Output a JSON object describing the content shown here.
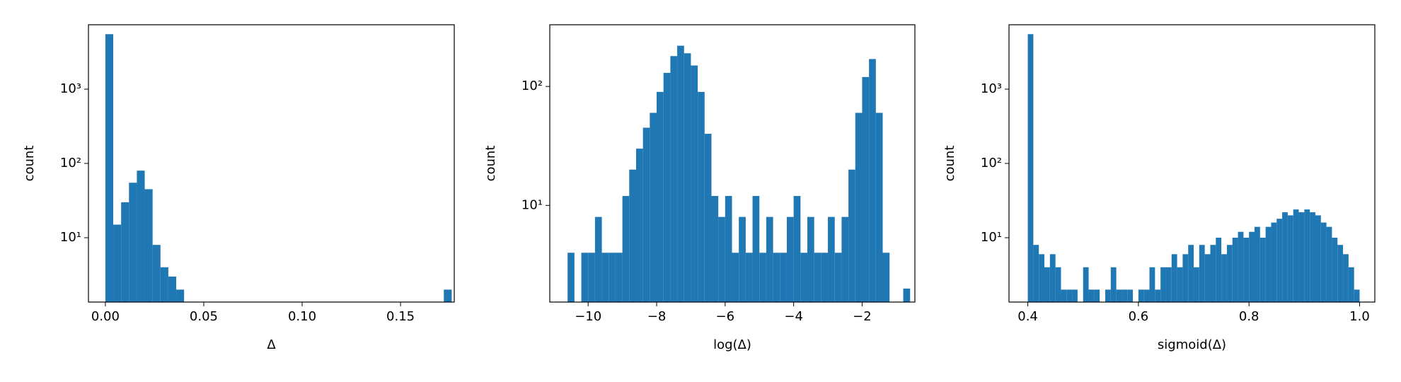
{
  "chart_data": [
    {
      "type": "histogram",
      "xlabel": "Δ",
      "ylabel": "count",
      "color": "#1f77b4",
      "log_y": true,
      "bins": [
        0,
        0.004,
        0.008,
        0.012,
        0.016,
        0.02,
        0.024,
        0.028,
        0.032,
        0.036,
        0.04,
        0.044,
        0.048,
        0.052,
        0.056,
        0.06,
        0.064,
        0.068,
        0.072,
        0.076,
        0.08,
        0.084,
        0.088,
        0.092,
        0.096,
        0.1,
        0.104,
        0.108,
        0.112,
        0.116,
        0.12,
        0.124,
        0.128,
        0.132,
        0.136,
        0.14,
        0.144,
        0.148,
        0.152,
        0.156,
        0.16,
        0.164,
        0.168,
        0.172,
        0.176
      ],
      "values": [
        5500,
        15,
        30,
        55,
        80,
        45,
        8,
        4,
        3,
        2,
        0,
        0,
        0,
        0,
        0,
        0,
        0,
        0,
        0,
        0,
        0,
        0,
        0,
        0,
        0,
        0,
        0,
        0,
        0,
        0,
        0,
        0,
        0,
        0,
        0,
        0,
        0,
        0,
        0,
        0,
        0,
        0,
        0,
        2
      ],
      "xlim": [
        -0.0086,
        0.1773
      ],
      "ylim": [
        1.36,
        7360
      ],
      "xticks": [
        {
          "value": 0,
          "label": "0.00"
        },
        0.05,
        {
          "value": 0.1,
          "label": "0.10"
        },
        0.15
      ],
      "yticks": [
        {
          "value": 10,
          "label": "10¹"
        },
        {
          "value": 100,
          "label": "10²"
        },
        {
          "value": 1000,
          "label": "10³"
        }
      ]
    },
    {
      "type": "histogram",
      "xlabel": "log(Δ)",
      "ylabel": "count",
      "color": "#1f77b4",
      "log_y": true,
      "bins": [
        -10.8,
        -10.6,
        -10.4,
        -10.2,
        -10,
        -9.8,
        -9.6,
        -9.4,
        -9.2,
        -9,
        -8.8,
        -8.6,
        -8.4,
        -8.2,
        -8,
        -7.8,
        -7.6,
        -7.4,
        -7.2,
        -7,
        -6.8,
        -6.6,
        -6.4,
        -6.2,
        -6,
        -5.8,
        -5.6,
        -5.4,
        -5.2,
        -5,
        -4.8,
        -4.6,
        -4.4,
        -4.2,
        -4,
        -3.8,
        -3.6,
        -3.4,
        -3.2,
        -3,
        -2.8,
        -2.6,
        -2.4,
        -2.2,
        -2,
        -1.8,
        -1.6,
        -1.4,
        -1.2,
        -1,
        -0.8,
        -0.6
      ],
      "values": [
        0,
        4,
        0,
        4,
        4,
        8,
        4,
        4,
        4,
        12,
        20,
        30,
        45,
        60,
        90,
        130,
        180,
        220,
        190,
        150,
        90,
        40,
        12,
        8,
        12,
        4,
        8,
        4,
        12,
        4,
        8,
        4,
        4,
        8,
        12,
        4,
        8,
        4,
        4,
        8,
        4,
        8,
        20,
        60,
        120,
        170,
        60,
        4,
        0,
        0,
        2
      ],
      "xlim": [
        -11.12,
        -0.46
      ],
      "ylim": [
        1.54,
        330
      ],
      "xticks": [
        {
          "value": -10,
          "label": "−10"
        },
        {
          "value": -8,
          "label": "−8"
        },
        {
          "value": -6,
          "label": "−6"
        },
        {
          "value": -4,
          "label": "−4"
        },
        {
          "value": -2,
          "label": "−2"
        }
      ],
      "yticks": [
        {
          "value": 10,
          "label": "10¹"
        },
        {
          "value": 100,
          "label": "10²"
        }
      ]
    },
    {
      "type": "histogram",
      "xlabel": "sigmoid(Δ)",
      "ylabel": "count",
      "color": "#1f77b4",
      "log_y": true,
      "bins": [
        0.4,
        0.41,
        0.42,
        0.43,
        0.44,
        0.45,
        0.46,
        0.47,
        0.48,
        0.49,
        0.5,
        0.51,
        0.52,
        0.53,
        0.54,
        0.55,
        0.56,
        0.57,
        0.58,
        0.59,
        0.6,
        0.61,
        0.62,
        0.63,
        0.64,
        0.65,
        0.66,
        0.67,
        0.68,
        0.69,
        0.7,
        0.71,
        0.72,
        0.73,
        0.74,
        0.75,
        0.76,
        0.77,
        0.78,
        0.79,
        0.8,
        0.81,
        0.82,
        0.83,
        0.84,
        0.85,
        0.86,
        0.87,
        0.88,
        0.89,
        0.9,
        0.91,
        0.92,
        0.93,
        0.94,
        0.95,
        0.96,
        0.97,
        0.98,
        0.99,
        1
      ],
      "values": [
        5500,
        8,
        6,
        4,
        6,
        4,
        2,
        2,
        2,
        0,
        4,
        2,
        2,
        0,
        2,
        4,
        2,
        2,
        2,
        0,
        2,
        2,
        4,
        2,
        4,
        4,
        6,
        4,
        6,
        8,
        4,
        8,
        6,
        8,
        10,
        6,
        8,
        10,
        12,
        10,
        12,
        14,
        10,
        14,
        16,
        18,
        22,
        20,
        24,
        22,
        24,
        22,
        20,
        16,
        14,
        10,
        8,
        6,
        4,
        2
      ],
      "xlim": [
        0.366,
        1.0275
      ],
      "ylim": [
        1.36,
        7360
      ],
      "xticks": [
        0.4,
        0.6,
        0.8,
        {
          "value": 1,
          "label": "1.0"
        }
      ],
      "yticks": [
        {
          "value": 10,
          "label": "10¹"
        },
        {
          "value": 100,
          "label": "10²"
        },
        {
          "value": 1000,
          "label": "10³"
        }
      ]
    }
  ]
}
